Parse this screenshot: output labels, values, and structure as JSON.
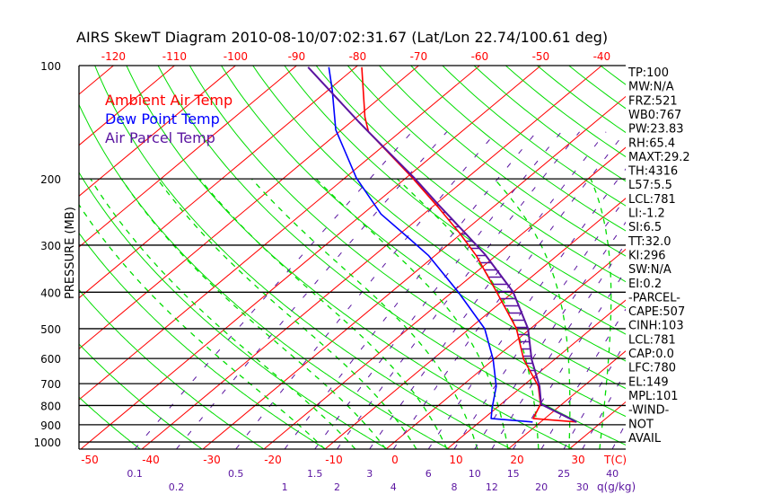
{
  "chart_data": {
    "type": "skewt",
    "title": "AIRS SkewT Diagram 2010-08-10/07:02:31.67 (Lat/Lon 22.74/100.61 deg)",
    "ylabel": "PRESSURE (MB)",
    "xlabel": "T(C)",
    "mixing_ratio_unit": "q(g/kg)",
    "pressure_range": [
      1045,
      100
    ],
    "pressure_ticks": [
      100,
      200,
      300,
      400,
      500,
      600,
      700,
      800,
      900,
      1000
    ],
    "top_temp_ticks": [
      -120,
      -110,
      -100,
      -90,
      -80,
      -70,
      -60,
      -50,
      -40
    ],
    "bottom_temp_ticks": [
      -50,
      -40,
      -30,
      -20,
      -10,
      0,
      10,
      20,
      30
    ],
    "mixing_ratio_ticks": [
      "0.1",
      "0.2",
      "0.5",
      "1",
      "1.5",
      "2",
      "3",
      "4",
      "6",
      "8",
      "10",
      "12",
      "15",
      "20",
      "25",
      "30",
      "40"
    ],
    "legend": [
      {
        "label": "Ambient Air Temp",
        "color": "#ff0000"
      },
      {
        "label": "Dew Point Temp",
        "color": "#0000ff"
      },
      {
        "label": "Air Parcel Temp",
        "color": "#5a14a0"
      }
    ],
    "series": [
      {
        "name": "Ambient Air Temp",
        "color": "#ff0000",
        "points": [
          [
            101,
            -79.0
          ],
          [
            137,
            -68.7
          ],
          [
            150,
            -65.2
          ],
          [
            199,
            -48.9
          ],
          [
            236,
            -39.4
          ],
          [
            278,
            -30.5
          ],
          [
            320,
            -23.2
          ],
          [
            399,
            -12.8
          ],
          [
            500,
            -2.3
          ],
          [
            603,
            4.9
          ],
          [
            711,
            12.6
          ],
          [
            794,
            16.5
          ],
          [
            866,
            18.1
          ],
          [
            885,
            25.9
          ]
        ]
      },
      {
        "name": "Dew Point Temp",
        "color": "#0000ff",
        "points": [
          [
            101,
            -84.4
          ],
          [
            116,
            -79.4
          ],
          [
            148,
            -71.0
          ],
          [
            199,
            -58.1
          ],
          [
            248,
            -47.0
          ],
          [
            287,
            -37.8
          ],
          [
            320,
            -31.0
          ],
          [
            399,
            -19.1
          ],
          [
            500,
            -7.5
          ],
          [
            603,
            -0.1
          ],
          [
            711,
            5.7
          ],
          [
            815,
            9.4
          ],
          [
            866,
            11.2
          ],
          [
            885,
            18.7
          ]
        ]
      },
      {
        "name": "Air Parcel Temp",
        "color": "#5a14a0",
        "points": [
          [
            101,
            -87.8
          ],
          [
            141,
            -68.8
          ],
          [
            150,
            -65.2
          ],
          [
            199,
            -48.6
          ],
          [
            236,
            -39.0
          ],
          [
            278,
            -29.6
          ],
          [
            317,
            -22.1
          ],
          [
            399,
            -10.1
          ],
          [
            500,
            -0.4
          ],
          [
            603,
            6.2
          ],
          [
            711,
            12.8
          ],
          [
            794,
            16.6
          ],
          [
            885,
            25.9
          ]
        ]
      }
    ],
    "cape_hatch_range_mb": [
      235,
      790
    ],
    "grid": {
      "isotherms_step_c": 10,
      "dry_adiabats": true,
      "moist_adiabats": true,
      "mixing_ratio_lines": true
    }
  },
  "stats": [
    "TP:100",
    "MW:N/A",
    "FRZ:521",
    "WB0:767",
    "PW:23.83",
    "RH:65.4",
    "MAXT:29.2",
    "TH:4316",
    "L57:5.5",
    "LCL:781",
    "LI:-1.2",
    "SI:6.5",
    "TT:32.0",
    "KI:296",
    "SW:N/A",
    "EI:0.2",
    "-PARCEL-",
    "CAPE:507",
    "CINH:103",
    "LCL:781",
    "CAP:0.0",
    "LFC:780",
    "EL:149",
    "MPL:101",
    "-WIND-",
    "NOT",
    "AVAIL"
  ]
}
